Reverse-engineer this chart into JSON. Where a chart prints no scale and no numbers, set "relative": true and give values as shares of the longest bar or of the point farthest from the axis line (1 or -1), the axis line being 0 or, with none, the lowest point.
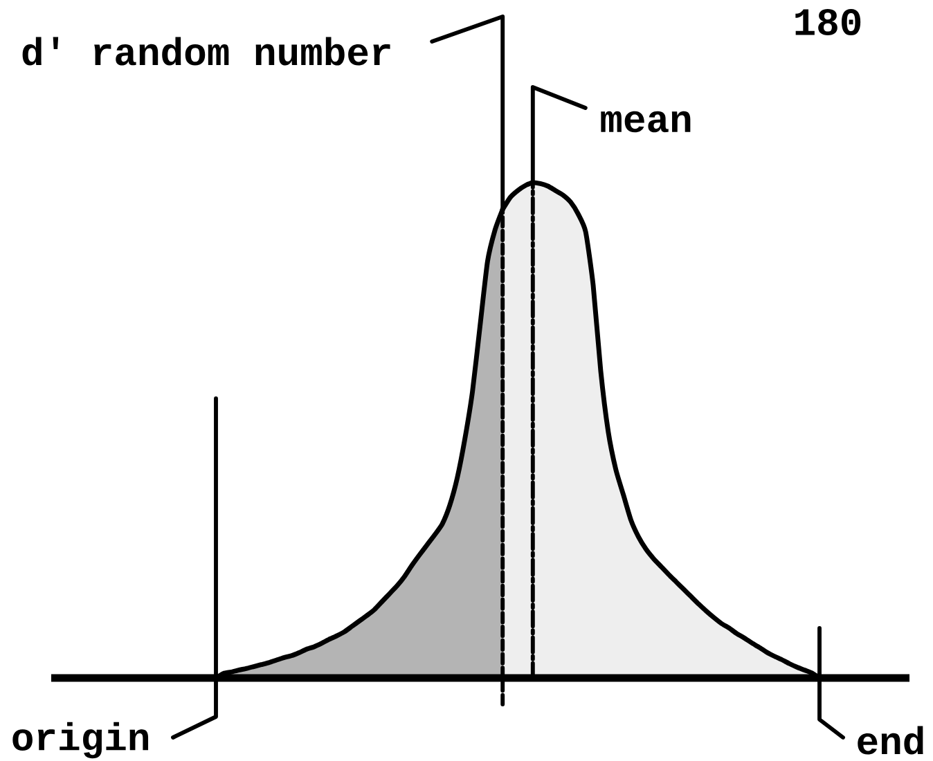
{
  "chart_data": {
    "type": "area",
    "relative": true,
    "categories": [
      null,
      null,
      null,
      null,
      null,
      null,
      null,
      null,
      null,
      null,
      null,
      null,
      null,
      null,
      null,
      null,
      null,
      null,
      null,
      null,
      null,
      null,
      null,
      null,
      null,
      null,
      null,
      null,
      null,
      null,
      null,
      null,
      null,
      null,
      null,
      null,
      null,
      null,
      null,
      null,
      null,
      null,
      null,
      null,
      null,
      null,
      null,
      null,
      null,
      null,
      null,
      null,
      null,
      null,
      null,
      null,
      null,
      null,
      null,
      null,
      null,
      null,
      null,
      null,
      null,
      null,
      null,
      null,
      null,
      null,
      null,
      null,
      null,
      null,
      null,
      null,
      null,
      null,
      null,
      null,
      null
    ],
    "series": [
      {
        "color": "#b4b4b4",
        "values": [
          0,
          0.009,
          0.012,
          0.016,
          0.019,
          0.023,
          0.027,
          0.031,
          0.036,
          0.041,
          0.045,
          0.051,
          0.058,
          0.063,
          0.07,
          0.078,
          0.085,
          0.093,
          0.104,
          0.115,
          0.126,
          0.138,
          0.154,
          0.17,
          0.186,
          0.205,
          0.228,
          0.249,
          0.269,
          0.289,
          0.311,
          0.349,
          0.405,
          0.483,
          0.578,
          0.71,
          0.841,
          0.905,
          0.946,
          null,
          null,
          null,
          null,
          null,
          null,
          null,
          null,
          null,
          null,
          null,
          null,
          null,
          null,
          null,
          null,
          null,
          null,
          null,
          null,
          null,
          null,
          null,
          null,
          null,
          null,
          null,
          null,
          null,
          null,
          null,
          null,
          null,
          null,
          null,
          null,
          null,
          null,
          null,
          null,
          null,
          null
        ]
      },
      {
        "color": "#eeeeee",
        "values": [
          null,
          null,
          null,
          null,
          null,
          null,
          null,
          null,
          null,
          null,
          null,
          null,
          null,
          null,
          null,
          null,
          null,
          null,
          null,
          null,
          null,
          null,
          null,
          null,
          null,
          null,
          null,
          null,
          null,
          null,
          null,
          null,
          null,
          null,
          null,
          null,
          null,
          null,
          0.946,
          0.97,
          0.984,
          0.994,
          1,
          0.998,
          0.993,
          0.984,
          0.975,
          0.961,
          0.937,
          0.901,
          0.793,
          0.62,
          0.497,
          0.421,
          0.37,
          0.319,
          0.285,
          0.26,
          0.241,
          0.225,
          0.209,
          0.194,
          0.179,
          0.164,
          0.149,
          0.135,
          0.122,
          0.11,
          0.101,
          0.09,
          0.081,
          0.071,
          0.062,
          0.052,
          0.044,
          0.037,
          0.029,
          0.022,
          0.016,
          0.01,
          0
        ]
      }
    ],
    "annotations": [
      "180",
      "d' random number",
      "mean",
      "origin",
      "end"
    ]
  }
}
